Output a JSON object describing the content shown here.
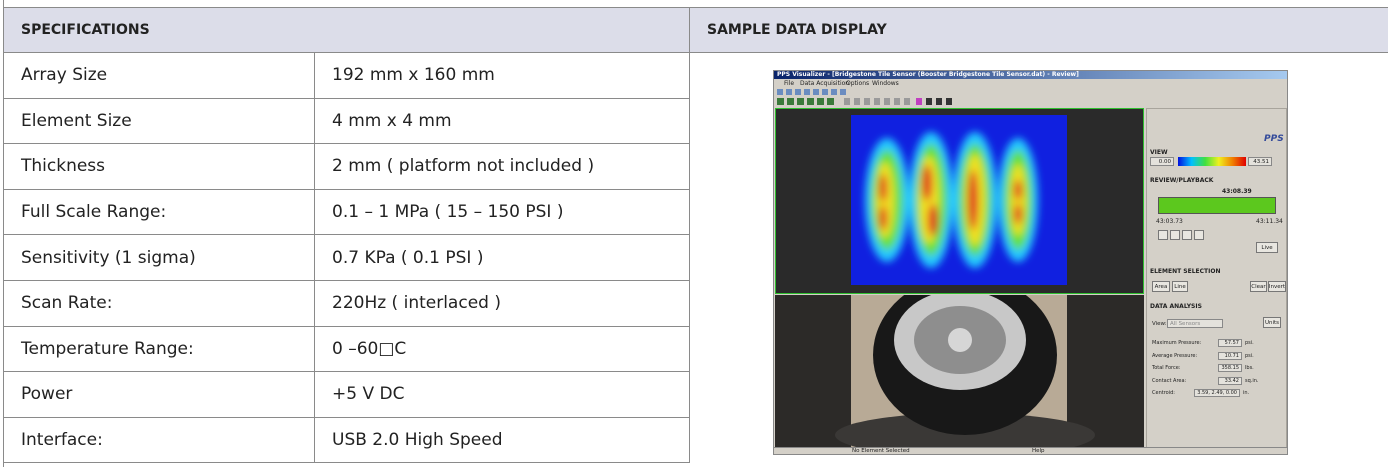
{
  "header": {
    "specifications": "SPECIFICATIONS",
    "sample_data_display": "SAMPLE DATA DISPLAY"
  },
  "table": {
    "rows": [
      [
        "Array Size",
        "192 mm x 160 mm"
      ],
      [
        "Element Size",
        "4 mm x 4 mm"
      ],
      [
        "Thickness",
        "2 mm ( platform not included )"
      ],
      [
        "Full Scale Range:",
        "0.1 – 1 MPa ( 15 – 150 PSI )"
      ],
      [
        "Sensitivity (1 sigma)",
        "0.7 KPa ( 0.1 PSI )"
      ],
      [
        "Scan Rate:",
        "220Hz ( interlaced )"
      ],
      [
        "Temperature Range:",
        "0 –60□C"
      ],
      [
        "Power",
        "+5 V DC"
      ],
      [
        "Interface:",
        "USB 2.0 High Speed"
      ]
    ]
  },
  "screenshot": {
    "title": "PPS Visualizer - [Bridgestone Tile Sensor (Booster Bridgestone Tile Sensor.dat) - Review]",
    "menu": [
      "File",
      "Data Acquisition",
      "Options",
      "Windows"
    ],
    "logo": "PPS",
    "view": "VIEW",
    "view_min": "0.00",
    "view_max": "43.51",
    "review_playback": "REVIEW/PLAYBACK",
    "time_current": "43:08.39",
    "time_start": "43:03.73",
    "time_end": "43:11.34",
    "live": "Live",
    "element_selection": "ELEMENT SELECTION",
    "area": "Area",
    "line": "Line",
    "clear": "Clear",
    "invert": "Invert",
    "data_analysis": "DATA ANALYSIS",
    "view_label": "View:",
    "all_sensors": "All Sensors",
    "units": "Units",
    "stats": [
      [
        "Maximum Pressure:",
        "57.57",
        "psi."
      ],
      [
        "Average Pressure:",
        "10.71",
        "psi."
      ],
      [
        "Total Force:",
        "358.15",
        "lbs."
      ],
      [
        "Contact Area:",
        "33.42",
        "sq.in."
      ],
      [
        "Centroid:",
        "3.59, 2.49, 0.00",
        "in."
      ]
    ],
    "status": "No Element Selected",
    "help": "Help"
  }
}
